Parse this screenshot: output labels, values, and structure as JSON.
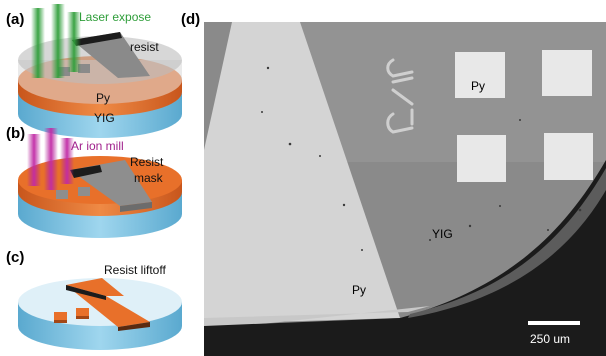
{
  "figure": {
    "panels": {
      "a": {
        "tag": "(a)",
        "step_label": "Laser expose",
        "step_color": "#2f9e3a",
        "layer_labels": {
          "top": "resist",
          "middle": "Py",
          "substrate": "YIG"
        }
      },
      "b": {
        "tag": "(b)",
        "step_label": "Ar ion mill",
        "step_color": "#a0208c",
        "layer_labels": {
          "mask_line1": "Resist",
          "mask_line2": "mask"
        }
      },
      "c": {
        "tag": "(c)",
        "step_label": "Resist liftoff"
      },
      "d": {
        "tag": "(d)",
        "labels": {
          "pads": "Py",
          "substrate": "YIG",
          "wedge": "Py"
        },
        "scale_bar": "250 um"
      }
    },
    "colors": {
      "yig_substrate": "#7ec3e0",
      "py_layer": "#e8702a",
      "resist": "#c9c9c9",
      "microscope_bg": "#8c8c8c"
    }
  }
}
